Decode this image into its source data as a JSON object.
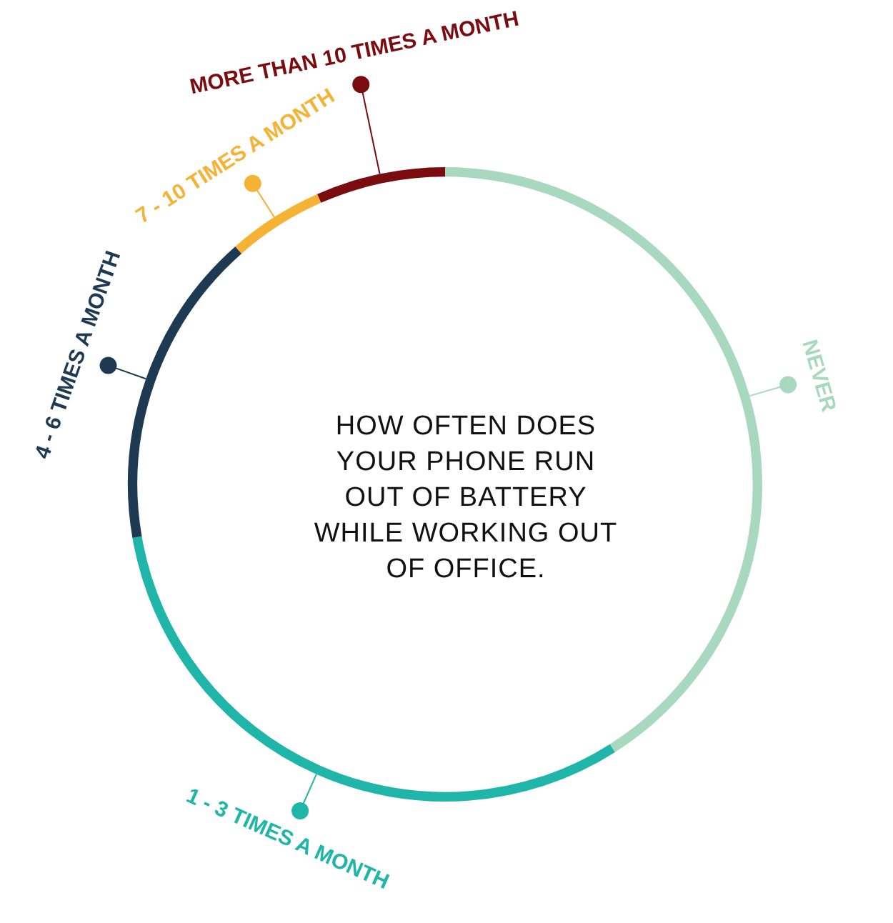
{
  "chart_data": {
    "type": "donut",
    "title": "HOW OFTEN DOES YOUR PHONE RUN OUT OF BATTERY WHILE WORKING OUT OF OFFICE.",
    "categories": [
      "NEVER",
      "1 - 3 TIMES A MONTH",
      "4 - 6 TIMES A MONTH",
      "7 - 10 TIMES A MONTH",
      "MORE THAN 10 TIMES A MONTH"
    ],
    "values": [
      41,
      31.3,
      16.2,
      4.9,
      6.6
    ],
    "colors": [
      "#a8d8bf",
      "#1fb5a8",
      "#1e3a52",
      "#f5b335",
      "#7a0c10"
    ]
  }
}
